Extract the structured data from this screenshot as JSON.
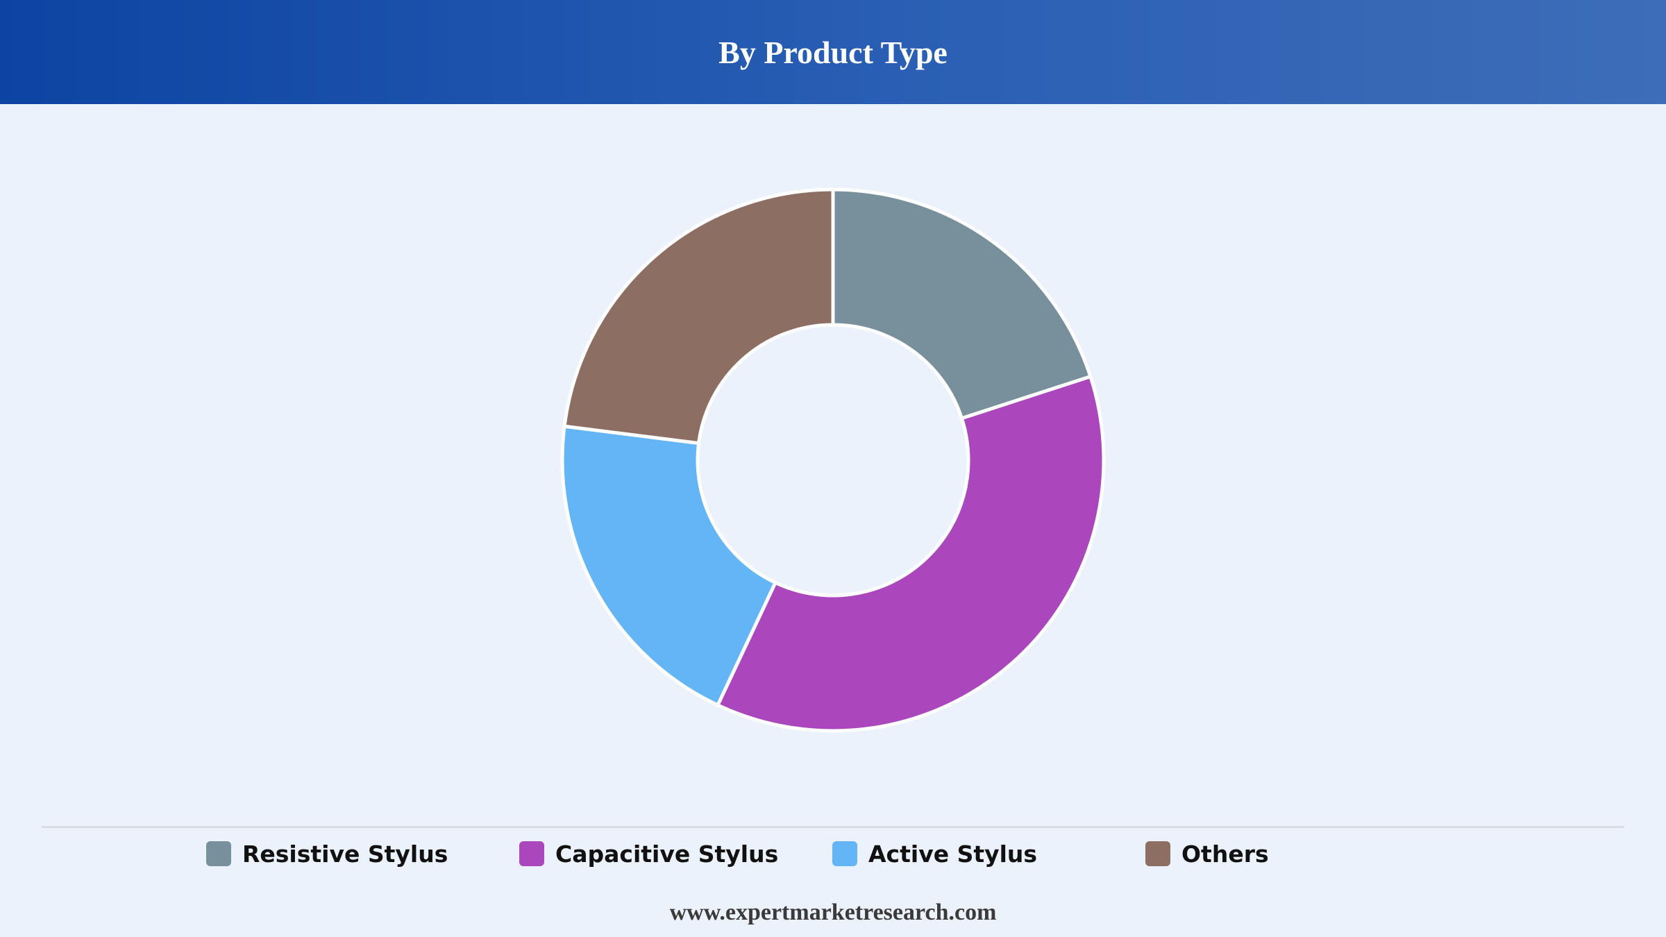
{
  "header": {
    "title": "By Product Type"
  },
  "chart_data": {
    "type": "pie",
    "variant": "donut",
    "categories": [
      "Resistive Stylus",
      "Capacitive Stylus",
      "Active Stylus",
      "Others"
    ],
    "values": [
      20,
      37,
      20,
      23
    ],
    "colors": [
      "#78909c",
      "#ab47bc",
      "#64b5f6",
      "#8d6e63"
    ],
    "legend_position": "bottom"
  },
  "legend": {
    "items": [
      {
        "label": "Resistive Stylus",
        "color": "#78909c"
      },
      {
        "label": "Capacitive Stylus",
        "color": "#ab47bc"
      },
      {
        "label": "Active Stylus",
        "color": "#64b5f6"
      },
      {
        "label": "Others",
        "color": "#8d6e63"
      }
    ]
  },
  "footer": {
    "text": "www.expertmarketresearch.com"
  }
}
